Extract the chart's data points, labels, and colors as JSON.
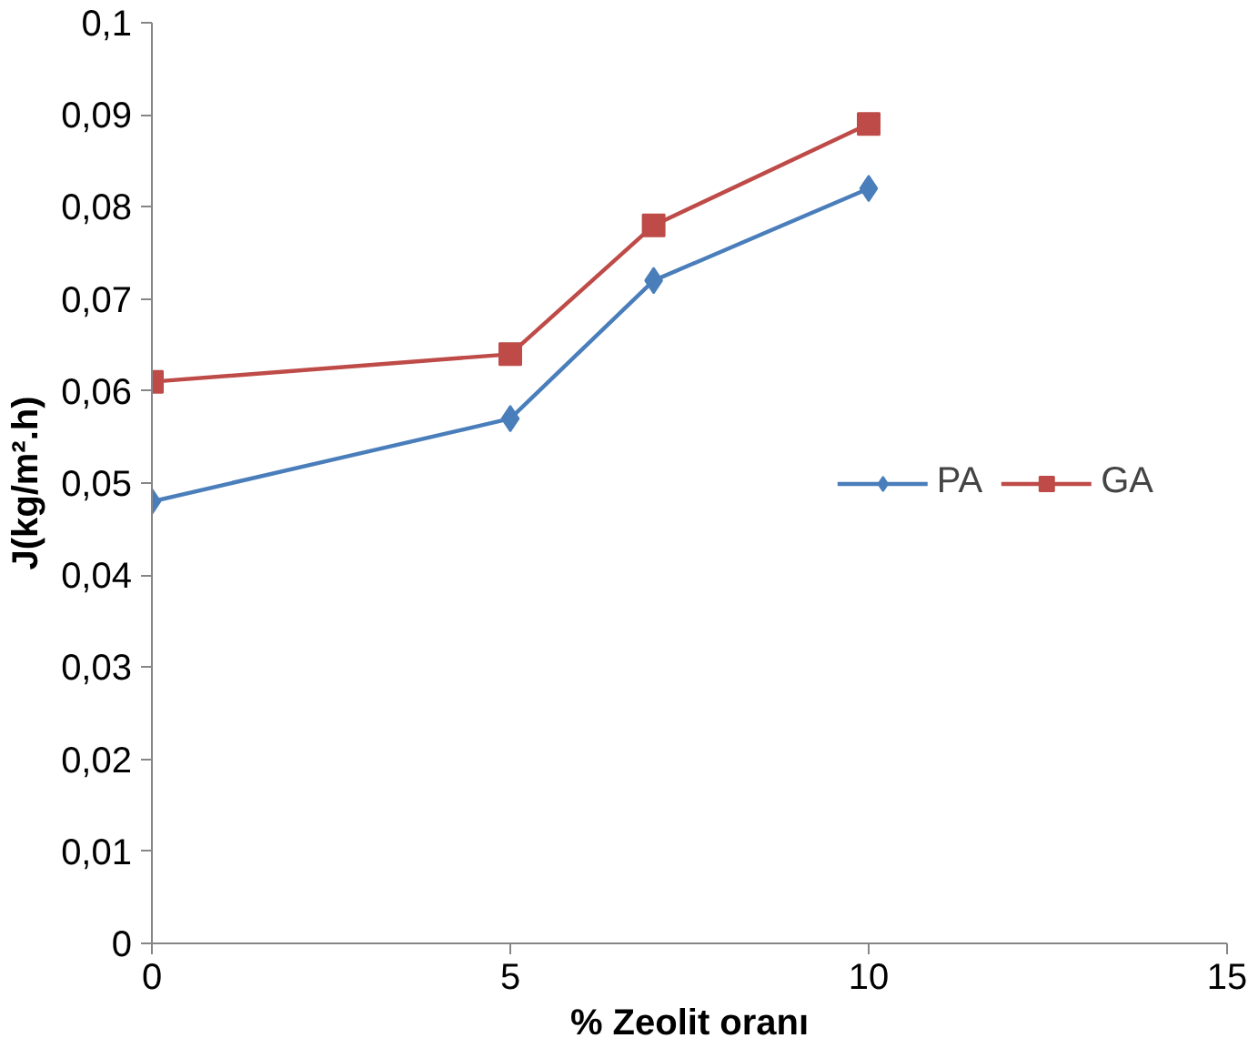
{
  "chart_data": {
    "type": "line",
    "xlabel": "% Zeolit oranı",
    "ylabel": "J(kg/m².h)",
    "xlim": [
      0,
      15
    ],
    "xticks": [
      0,
      5,
      10,
      15
    ],
    "ylim": [
      0,
      0.1
    ],
    "yticks": [
      {
        "value": 0,
        "label": "0"
      },
      {
        "value": 0.01,
        "label": "0,01"
      },
      {
        "value": 0.02,
        "label": "0,02"
      },
      {
        "value": 0.03,
        "label": "0,03"
      },
      {
        "value": 0.04,
        "label": "0,04"
      },
      {
        "value": 0.05,
        "label": "0,05"
      },
      {
        "value": 0.06,
        "label": "0,06"
      },
      {
        "value": 0.07,
        "label": "0,07"
      },
      {
        "value": 0.08,
        "label": "0,08"
      },
      {
        "value": 0.09,
        "label": "0,09"
      },
      {
        "value": 0.1,
        "label": "0,1"
      }
    ],
    "x": [
      0,
      5,
      7,
      10
    ],
    "series": [
      {
        "name": "PA",
        "color": "#4a7ebb",
        "marker": "diamond",
        "values": [
          0.048,
          0.057,
          0.072,
          0.082
        ]
      },
      {
        "name": "GA",
        "color": "#be4b48",
        "marker": "square",
        "values": [
          0.061,
          0.064,
          0.078,
          0.089
        ]
      }
    ],
    "grid": false,
    "legend": "right",
    "line_style": "solid"
  }
}
